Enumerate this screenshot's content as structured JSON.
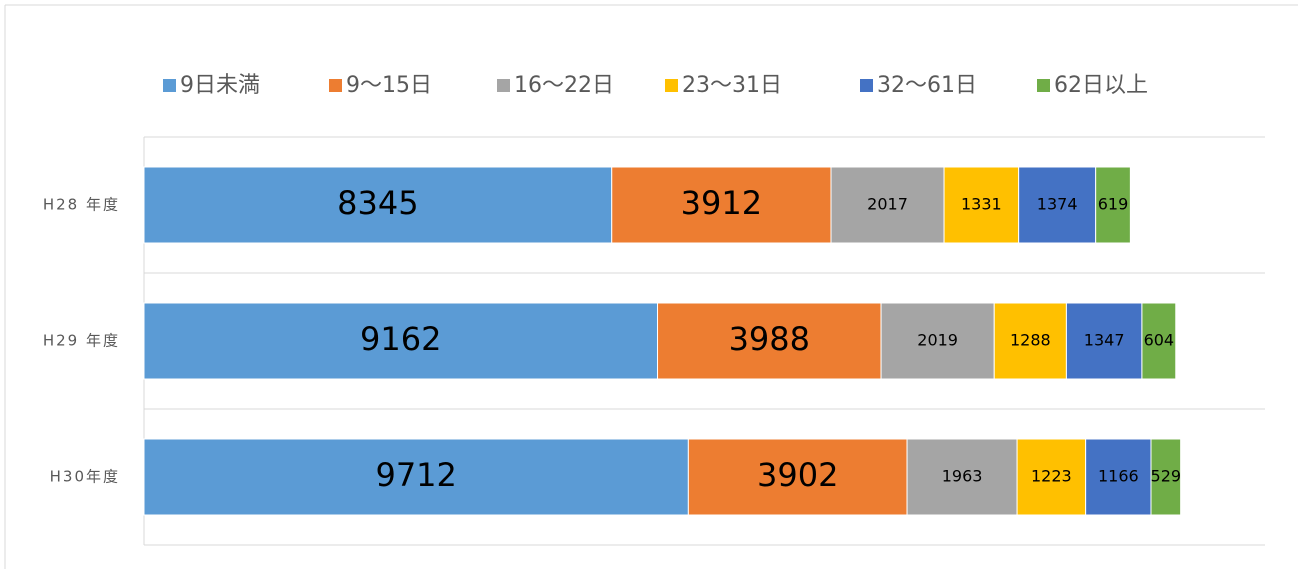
{
  "chart_data": {
    "type": "stacked-bar-horizontal",
    "categories": [
      "H28 年度",
      "H29 年度",
      "H30年度"
    ],
    "series": [
      {
        "name": "9日未満",
        "color": "#5b9bd5",
        "values": [
          8345,
          9162,
          9712
        ]
      },
      {
        "name": "9～15日",
        "color": "#ed7d31",
        "values": [
          3912,
          3988,
          3902
        ]
      },
      {
        "name": "16～22日",
        "color": "#a5a5a5",
        "values": [
          2017,
          2019,
          1963
        ]
      },
      {
        "name": "23～31日",
        "color": "#ffc000",
        "values": [
          1331,
          1288,
          1223
        ]
      },
      {
        "name": "32～61日",
        "color": "#4472c4",
        "values": [
          1374,
          1347,
          1166
        ]
      },
      {
        "name": "62日以上",
        "color": "#70ad47",
        "values": [
          619,
          604,
          529
        ]
      }
    ],
    "xlim": [
      0,
      20000
    ],
    "legend": "top"
  }
}
